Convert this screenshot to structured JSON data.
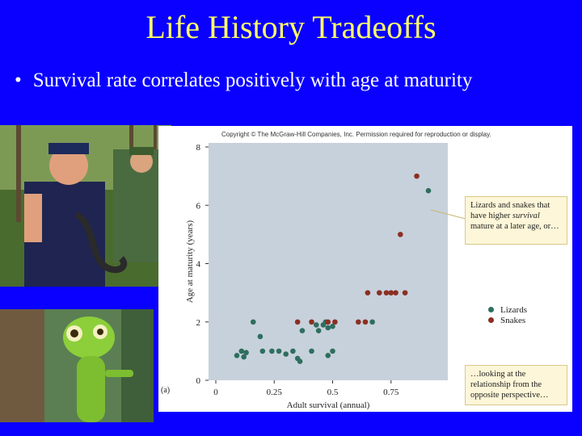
{
  "slide": {
    "title": "Life History Tradeoffs",
    "bullet_marker": "•",
    "bullet": "Survival rate correlates positively with age at maturity"
  },
  "figure": {
    "copyright": "Copyright © The McGraw-Hill Companies, Inc. Permission required for reproduction or display.",
    "panel_label": "(a)",
    "callout_top_parts": [
      "Lizards and snakes that have higher ",
      "survival",
      " mature at a later age, or…"
    ],
    "callout_bottom": "…looking at the relationship from the opposite perspective…"
  },
  "chart_data": {
    "type": "scatter",
    "xlabel": "Adult survival (annual)",
    "ylabel": "Age at maturity (years)",
    "xlim": [
      0,
      1
    ],
    "ylim": [
      0,
      8
    ],
    "xticks": [
      "0",
      "0.25",
      "0.5",
      "0.75"
    ],
    "yticks": [
      "0",
      "2",
      "4",
      "6",
      "8"
    ],
    "legend_position": "right",
    "grid": false,
    "series": [
      {
        "name": "Lizards",
        "color": "#2e6e5e",
        "points": [
          [
            0.09,
            0.85
          ],
          [
            0.11,
            1.0
          ],
          [
            0.12,
            0.8
          ],
          [
            0.13,
            0.95
          ],
          [
            0.16,
            2.0
          ],
          [
            0.19,
            1.5
          ],
          [
            0.2,
            1.0
          ],
          [
            0.24,
            1.0
          ],
          [
            0.27,
            1.0
          ],
          [
            0.3,
            0.9
          ],
          [
            0.33,
            1.0
          ],
          [
            0.35,
            0.75
          ],
          [
            0.36,
            0.65
          ],
          [
            0.37,
            1.7
          ],
          [
            0.41,
            1.0
          ],
          [
            0.43,
            1.9
          ],
          [
            0.44,
            1.7
          ],
          [
            0.46,
            1.9
          ],
          [
            0.47,
            2.0
          ],
          [
            0.48,
            1.8
          ],
          [
            0.48,
            0.85
          ],
          [
            0.5,
            1.0
          ],
          [
            0.5,
            1.85
          ],
          [
            0.67,
            2.0
          ],
          [
            0.91,
            6.5
          ]
        ]
      },
      {
        "name": "Snakes",
        "color": "#8b2f22",
        "points": [
          [
            0.35,
            2.0
          ],
          [
            0.41,
            2.0
          ],
          [
            0.48,
            2.0
          ],
          [
            0.51,
            2.0
          ],
          [
            0.61,
            2.0
          ],
          [
            0.64,
            2.0
          ],
          [
            0.65,
            3.0
          ],
          [
            0.7,
            3.0
          ],
          [
            0.73,
            3.0
          ],
          [
            0.75,
            3.0
          ],
          [
            0.77,
            3.0
          ],
          [
            0.79,
            5.0
          ],
          [
            0.81,
            3.0
          ],
          [
            0.86,
            7.0
          ]
        ]
      }
    ]
  }
}
